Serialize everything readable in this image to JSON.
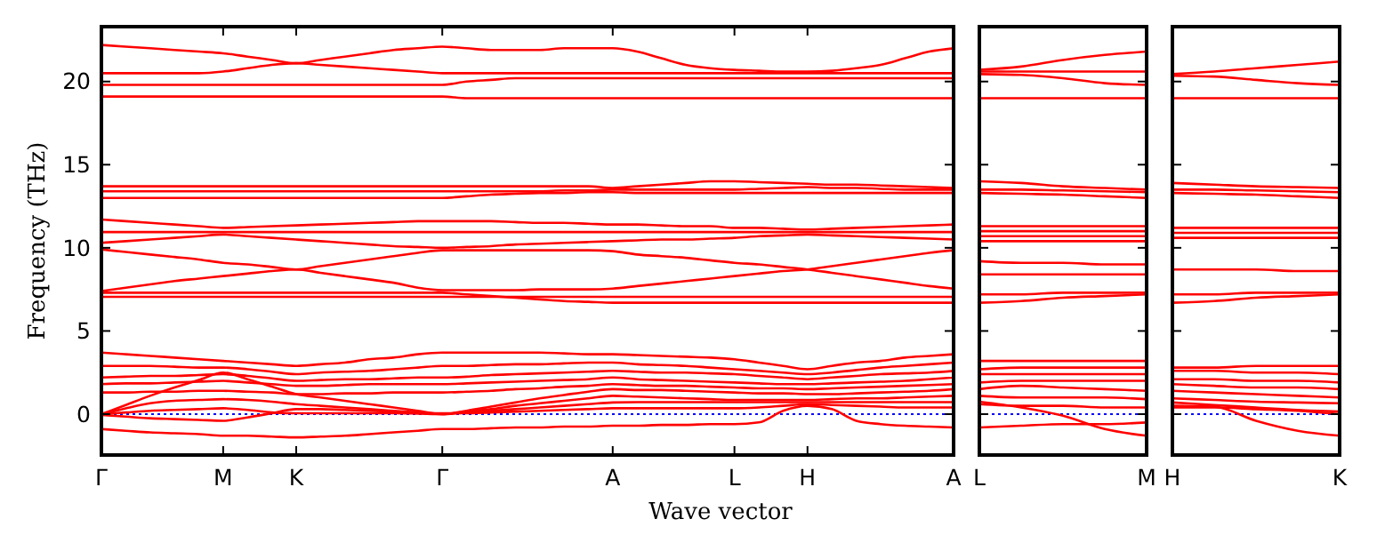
{
  "chart_data": [
    {
      "type": "line",
      "ylabel": "Frequency (THz)",
      "xlabel": "Wave vector",
      "categories": [
        "Γ",
        null,
        null,
        null,
        null,
        "M",
        null,
        null,
        "K",
        null,
        null,
        null,
        null,
        null,
        "Γ",
        null,
        null,
        null,
        null,
        null,
        null,
        "A",
        null,
        null,
        null,
        null,
        "L",
        null,
        null,
        "H",
        null,
        null,
        null,
        null,
        null,
        "A"
      ],
      "ylim": [
        -2.46,
        23.3
      ],
      "yticks": [
        0,
        5,
        10,
        15,
        20
      ],
      "ref_lines": [
        {
          "axis": "y",
          "value": 0,
          "color": "#0000ff",
          "line_style": "dotted"
        }
      ],
      "series": [
        {
          "color": "#ff0000",
          "values": [
            22.2,
            22.1,
            22.0,
            21.9,
            21.8,
            21.7,
            21.5,
            21.3,
            21.1,
            21.3,
            21.5,
            21.7,
            21.9,
            22.0,
            22.1,
            22.0,
            21.9,
            21.9,
            21.9,
            22.0,
            22.0,
            22.0,
            21.8,
            21.4,
            21.0,
            20.8,
            20.7,
            20.65,
            20.6,
            20.6,
            20.65,
            20.8,
            21.0,
            21.4,
            21.8,
            22.0
          ]
        },
        {
          "color": "#ff0000",
          "values": [
            20.5,
            20.5,
            20.5,
            20.5,
            20.5,
            20.6,
            20.8,
            21.0,
            21.1,
            21.0,
            20.9,
            20.8,
            20.7,
            20.6,
            20.5,
            20.5,
            20.5,
            20.5,
            20.5,
            20.5,
            20.5,
            20.5,
            20.5,
            20.5,
            20.5,
            20.5,
            20.5,
            20.5,
            20.5,
            20.5,
            20.5,
            20.5,
            20.5,
            20.5,
            20.5,
            20.5
          ]
        },
        {
          "color": "#ff0000",
          "values": [
            19.8,
            19.8,
            19.8,
            19.8,
            19.8,
            19.8,
            19.8,
            19.8,
            19.8,
            19.8,
            19.8,
            19.8,
            19.8,
            19.8,
            19.8,
            20.0,
            20.1,
            20.2,
            20.2,
            20.2,
            20.2,
            20.2,
            20.2,
            20.2,
            20.2,
            20.2,
            20.2,
            20.2,
            20.2,
            20.2,
            20.2,
            20.2,
            20.2,
            20.2,
            20.2,
            20.2
          ]
        },
        {
          "color": "#ff0000",
          "values": [
            19.1,
            19.1,
            19.1,
            19.1,
            19.1,
            19.1,
            19.1,
            19.1,
            19.1,
            19.1,
            19.1,
            19.1,
            19.1,
            19.1,
            19.1,
            19.0,
            19.0,
            19.0,
            19.0,
            19.0,
            19.0,
            19.0,
            19.0,
            19.0,
            19.0,
            19.0,
            19.0,
            19.0,
            19.0,
            19.0,
            19.0,
            19.0,
            19.0,
            19.0,
            19.0,
            19.0
          ]
        },
        {
          "color": "#ff0000",
          "values": [
            13.7,
            13.7,
            13.7,
            13.7,
            13.7,
            13.7,
            13.7,
            13.7,
            13.7,
            13.7,
            13.7,
            13.7,
            13.7,
            13.7,
            13.7,
            13.7,
            13.7,
            13.7,
            13.7,
            13.7,
            13.7,
            13.6,
            13.7,
            13.8,
            13.9,
            14.0,
            14.0,
            13.95,
            13.9,
            13.85,
            13.8,
            13.8,
            13.75,
            13.7,
            13.65,
            13.6
          ]
        },
        {
          "color": "#ff0000",
          "values": [
            13.4,
            13.4,
            13.4,
            13.4,
            13.4,
            13.4,
            13.4,
            13.4,
            13.4,
            13.4,
            13.4,
            13.4,
            13.4,
            13.4,
            13.4,
            13.4,
            13.4,
            13.4,
            13.4,
            13.45,
            13.45,
            13.5,
            13.5,
            13.5,
            13.5,
            13.5,
            13.5,
            13.55,
            13.6,
            13.65,
            13.6,
            13.6,
            13.55,
            13.5,
            13.5,
            13.5
          ]
        },
        {
          "color": "#ff0000",
          "values": [
            13.0,
            13.0,
            13.0,
            13.0,
            13.0,
            13.0,
            13.0,
            13.0,
            13.0,
            13.0,
            13.0,
            13.0,
            13.0,
            13.0,
            13.0,
            13.1,
            13.2,
            13.25,
            13.3,
            13.3,
            13.35,
            13.35,
            13.3,
            13.3,
            13.3,
            13.3,
            13.3,
            13.3,
            13.3,
            13.3,
            13.3,
            13.3,
            13.3,
            13.3,
            13.3,
            13.3
          ]
        },
        {
          "color": "#ff0000",
          "values": [
            11.7,
            11.6,
            11.5,
            11.4,
            11.3,
            11.2,
            11.25,
            11.3,
            11.35,
            11.4,
            11.45,
            11.5,
            11.55,
            11.6,
            11.6,
            11.6,
            11.6,
            11.55,
            11.5,
            11.5,
            11.45,
            11.4,
            11.4,
            11.35,
            11.3,
            11.3,
            11.2,
            11.2,
            11.15,
            11.1,
            11.15,
            11.2,
            11.25,
            11.3,
            11.35,
            11.4
          ]
        },
        {
          "color": "#ff0000",
          "values": [
            10.95,
            10.95,
            10.95,
            10.95,
            10.95,
            10.95,
            10.95,
            10.95,
            10.95,
            10.95,
            10.95,
            10.95,
            10.95,
            10.95,
            10.95,
            10.95,
            10.95,
            10.95,
            10.95,
            10.95,
            10.95,
            10.95,
            10.95,
            10.95,
            10.95,
            10.95,
            10.95,
            10.95,
            10.95,
            10.95,
            10.95,
            10.95,
            10.95,
            10.95,
            10.95,
            10.95
          ]
        },
        {
          "color": "#ff0000",
          "values": [
            10.3,
            10.4,
            10.5,
            10.6,
            10.7,
            10.8,
            10.7,
            10.6,
            10.5,
            10.4,
            10.3,
            10.2,
            10.1,
            10.05,
            10.0,
            10.05,
            10.1,
            10.2,
            10.25,
            10.3,
            10.35,
            10.4,
            10.45,
            10.5,
            10.5,
            10.55,
            10.6,
            10.7,
            10.75,
            10.8,
            10.75,
            10.7,
            10.65,
            10.6,
            10.55,
            10.5
          ]
        },
        {
          "color": "#ff0000",
          "values": [
            9.9,
            9.75,
            9.6,
            9.45,
            9.3,
            9.1,
            9.0,
            8.85,
            8.7,
            8.9,
            9.1,
            9.3,
            9.5,
            9.7,
            9.85,
            9.85,
            9.85,
            9.85,
            9.85,
            9.85,
            9.85,
            9.8,
            9.6,
            9.5,
            9.4,
            9.25,
            9.1,
            9.0,
            8.85,
            8.7,
            8.5,
            8.3,
            8.1,
            7.9,
            7.7,
            7.55
          ]
        },
        {
          "color": "#ff0000",
          "values": [
            7.4,
            7.6,
            7.8,
            8.0,
            8.15,
            8.3,
            8.45,
            8.6,
            8.7,
            8.5,
            8.3,
            8.1,
            7.9,
            7.6,
            7.45,
            7.45,
            7.45,
            7.45,
            7.5,
            7.5,
            7.5,
            7.55,
            7.7,
            7.85,
            8.0,
            8.15,
            8.3,
            8.45,
            8.6,
            8.7,
            8.9,
            9.1,
            9.3,
            9.5,
            9.7,
            9.85
          ]
        },
        {
          "color": "#ff0000",
          "values": [
            7.3,
            7.3,
            7.3,
            7.3,
            7.3,
            7.3,
            7.3,
            7.3,
            7.3,
            7.3,
            7.3,
            7.3,
            7.3,
            7.3,
            7.3,
            7.2,
            7.1,
            7.0,
            6.9,
            6.8,
            6.75,
            6.7,
            6.7,
            6.7,
            6.7,
            6.7,
            6.7,
            6.7,
            6.7,
            6.7,
            6.7,
            6.7,
            6.7,
            6.7,
            6.7,
            6.7
          ]
        },
        {
          "color": "#ff0000",
          "values": [
            7.05,
            7.05,
            7.05,
            7.05,
            7.05,
            7.05,
            7.05,
            7.05,
            7.05,
            7.05,
            7.05,
            7.05,
            7.05,
            7.05,
            7.05,
            7.05,
            7.05,
            7.05,
            7.05,
            7.05,
            7.05,
            7.05,
            7.05,
            7.05,
            7.05,
            7.05,
            7.05,
            7.05,
            7.05,
            7.05,
            7.05,
            7.05,
            7.05,
            7.05,
            7.05,
            7.05
          ]
        },
        {
          "color": "#ff0000",
          "values": [
            3.7,
            3.6,
            3.5,
            3.4,
            3.3,
            3.2,
            3.1,
            3.0,
            2.9,
            3.0,
            3.1,
            3.3,
            3.4,
            3.6,
            3.7,
            3.7,
            3.7,
            3.7,
            3.7,
            3.65,
            3.6,
            3.6,
            3.55,
            3.5,
            3.45,
            3.4,
            3.3,
            3.1,
            2.9,
            2.7,
            2.9,
            3.1,
            3.2,
            3.4,
            3.5,
            3.6
          ]
        },
        {
          "color": "#ff0000",
          "values": [
            2.9,
            2.9,
            2.9,
            2.85,
            2.8,
            2.8,
            2.7,
            2.55,
            2.4,
            2.5,
            2.55,
            2.6,
            2.7,
            2.8,
            2.9,
            2.9,
            2.95,
            3.0,
            3.0,
            3.05,
            3.1,
            3.1,
            3.0,
            2.95,
            2.9,
            2.8,
            2.7,
            2.6,
            2.5,
            2.4,
            2.5,
            2.65,
            2.8,
            2.9,
            3.0,
            3.1
          ]
        },
        {
          "color": "#ff0000",
          "values": [
            2.2,
            2.25,
            2.3,
            2.3,
            2.35,
            2.4,
            2.3,
            2.15,
            2.0,
            2.05,
            2.1,
            2.1,
            2.15,
            2.2,
            2.2,
            2.25,
            2.35,
            2.4,
            2.45,
            2.5,
            2.55,
            2.6,
            2.55,
            2.5,
            2.5,
            2.45,
            2.4,
            2.3,
            2.2,
            2.1,
            2.2,
            2.3,
            2.4,
            2.45,
            2.5,
            2.6
          ]
        },
        {
          "color": "#ff0000",
          "values": [
            1.8,
            1.85,
            1.85,
            1.9,
            1.95,
            2.0,
            1.9,
            1.8,
            1.7,
            1.7,
            1.75,
            1.8,
            1.8,
            1.8,
            1.8,
            1.85,
            1.9,
            1.95,
            2.0,
            2.05,
            2.1,
            2.2,
            2.1,
            2.05,
            2.0,
            1.95,
            1.9,
            1.85,
            1.8,
            1.8,
            1.85,
            1.9,
            1.95,
            2.0,
            2.1,
            2.2
          ]
        },
        {
          "color": "#ff0000",
          "values": [
            1.3,
            1.3,
            1.35,
            1.35,
            1.4,
            1.4,
            1.35,
            1.3,
            1.2,
            1.2,
            1.25,
            1.25,
            1.3,
            1.3,
            1.3,
            1.35,
            1.4,
            1.5,
            1.55,
            1.65,
            1.7,
            1.8,
            1.75,
            1.7,
            1.7,
            1.65,
            1.6,
            1.55,
            1.55,
            1.5,
            1.55,
            1.6,
            1.65,
            1.7,
            1.75,
            1.8
          ]
        },
        {
          "color": "#ff0000",
          "values": [
            0,
            0.35,
            0.65,
            0.8,
            0.85,
            0.9,
            0.85,
            0.75,
            0.6,
            0.5,
            0.4,
            0.3,
            0.2,
            0.1,
            0,
            0.2,
            0.45,
            0.7,
            0.95,
            1.15,
            1.35,
            1.5,
            1.45,
            1.45,
            1.4,
            1.35,
            1.3,
            1.25,
            1.25,
            1.2,
            1.2,
            1.25,
            1.3,
            1.35,
            1.4,
            1.5
          ]
        },
        {
          "color": "#ff0000",
          "values": [
            0,
            0.55,
            1.1,
            1.6,
            2.05,
            2.5,
            2.1,
            1.65,
            1.2,
            1.0,
            0.8,
            0.6,
            0.4,
            0.2,
            0,
            0.15,
            0.3,
            0.5,
            0.65,
            0.8,
            0.95,
            1.1,
            1.05,
            1.0,
            0.95,
            0.9,
            0.85,
            0.85,
            0.85,
            0.85,
            0.9,
            0.95,
            0.95,
            1.0,
            1.05,
            1.1
          ]
        },
        {
          "color": "#ff0000",
          "values": [
            0,
            0.1,
            0.2,
            0.25,
            0.3,
            0.35,
            0.25,
            0.1,
            0.05,
            0.05,
            0.05,
            0.05,
            0.05,
            0.03,
            0,
            0.1,
            0.2,
            0.3,
            0.4,
            0.5,
            0.6,
            0.7,
            0.72,
            0.72,
            0.72,
            0.72,
            0.72,
            0.72,
            0.72,
            0.72,
            0.72,
            0.72,
            0.72,
            0.72,
            0.72,
            0.72
          ]
        },
        {
          "color": "#ff0000",
          "values": [
            -0.05,
            -0.15,
            -0.25,
            -0.3,
            -0.35,
            -0.4,
            -0.2,
            0.05,
            0.3,
            0.3,
            0.25,
            0.2,
            0.15,
            0.1,
            0.05,
            0.05,
            0.1,
            0.15,
            0.2,
            0.25,
            0.3,
            0.35,
            0.35,
            0.35,
            0.35,
            0.35,
            0.35,
            0.4,
            0.5,
            0.6,
            0.55,
            0.5,
            0.45,
            0.4,
            0.4,
            0.4
          ]
        },
        {
          "color": "#ff0000",
          "values": [
            -0.9,
            -1.0,
            -1.1,
            -1.15,
            -1.2,
            -1.3,
            -1.3,
            -1.35,
            -1.4,
            -1.35,
            -1.3,
            -1.2,
            -1.1,
            -1.0,
            -0.9,
            -0.9,
            -0.85,
            -0.8,
            -0.8,
            -0.75,
            -0.75,
            -0.7,
            -0.7,
            -0.65,
            -0.65,
            -0.6,
            -0.6,
            -0.5,
            0.2,
            0.5,
            0.3,
            -0.4,
            -0.6,
            -0.7,
            -0.75,
            -0.8
          ]
        }
      ]
    },
    {
      "type": "line",
      "tick_labels": "x",
      "categories": [
        "L",
        null,
        null,
        null,
        "M"
      ],
      "ylim": [
        -2.46,
        23.3
      ],
      "yticks": [
        0,
        5,
        10,
        15,
        20
      ],
      "ref_lines": [
        {
          "axis": "y",
          "value": 0,
          "color": "#0000ff",
          "line_style": "dotted"
        }
      ],
      "series": [
        {
          "color": "#ff0000",
          "values": [
            20.7,
            20.9,
            21.3,
            21.6,
            21.8
          ]
        },
        {
          "color": "#ff0000",
          "values": [
            20.6,
            20.6,
            20.6,
            20.6,
            20.6
          ]
        },
        {
          "color": "#ff0000",
          "values": [
            20.45,
            20.4,
            20.2,
            19.9,
            19.8
          ]
        },
        {
          "color": "#ff0000",
          "values": [
            19.0,
            19.0,
            19.0,
            19.0,
            19.0
          ]
        },
        {
          "color": "#ff0000",
          "values": [
            14.0,
            13.9,
            13.7,
            13.6,
            13.5
          ]
        },
        {
          "color": "#ff0000",
          "values": [
            13.5,
            13.5,
            13.45,
            13.4,
            13.35
          ]
        },
        {
          "color": "#ff0000",
          "values": [
            13.3,
            13.25,
            13.2,
            13.1,
            13.0
          ]
        },
        {
          "color": "#ff0000",
          "values": [
            11.3,
            11.3,
            11.3,
            11.3,
            11.3
          ]
        },
        {
          "color": "#ff0000",
          "values": [
            11.0,
            11.0,
            11.0,
            11.0,
            11.0
          ]
        },
        {
          "color": "#ff0000",
          "values": [
            10.7,
            10.7,
            10.7,
            10.7,
            10.7
          ]
        },
        {
          "color": "#ff0000",
          "values": [
            10.4,
            10.4,
            10.4,
            10.4,
            10.4
          ]
        },
        {
          "color": "#ff0000",
          "values": [
            9.2,
            9.1,
            9.1,
            9.0,
            9.0
          ]
        },
        {
          "color": "#ff0000",
          "values": [
            8.4,
            8.4,
            8.4,
            8.4,
            8.4
          ]
        },
        {
          "color": "#ff0000",
          "values": [
            7.2,
            7.2,
            7.3,
            7.3,
            7.3
          ]
        },
        {
          "color": "#ff0000",
          "values": [
            6.7,
            6.8,
            7.0,
            7.1,
            7.2
          ]
        },
        {
          "color": "#ff0000",
          "values": [
            3.2,
            3.2,
            3.2,
            3.2,
            3.2
          ]
        },
        {
          "color": "#ff0000",
          "values": [
            2.7,
            2.8,
            2.8,
            2.8,
            2.8
          ]
        },
        {
          "color": "#ff0000",
          "values": [
            2.4,
            2.4,
            2.4,
            2.4,
            2.4
          ]
        },
        {
          "color": "#ff0000",
          "values": [
            1.9,
            2.0,
            2.0,
            2.0,
            2.0
          ]
        },
        {
          "color": "#ff0000",
          "values": [
            1.5,
            1.7,
            1.6,
            1.5,
            1.4
          ]
        },
        {
          "color": "#ff0000",
          "values": [
            1.1,
            1.0,
            1.0,
            1.0,
            0.9
          ]
        },
        {
          "color": "#ff0000",
          "values": [
            0.6,
            0.5,
            0.5,
            0.4,
            0.4
          ]
        },
        {
          "color": "#ff0000",
          "values": [
            0.75,
            0.4,
            -0.1,
            -0.9,
            -1.3
          ]
        },
        {
          "color": "#ff0000",
          "values": [
            -0.8,
            -0.7,
            -0.6,
            -0.6,
            -0.5
          ]
        }
      ]
    },
    {
      "type": "line",
      "tick_labels": "x",
      "categories": [
        "H",
        null,
        null,
        null,
        "K"
      ],
      "ylim": [
        -2.46,
        23.3
      ],
      "yticks": [
        0,
        5,
        10,
        15,
        20
      ],
      "ref_lines": [
        {
          "axis": "y",
          "value": 0,
          "color": "#0000ff",
          "line_style": "dotted"
        }
      ],
      "series": [
        {
          "color": "#ff0000",
          "values": [
            20.45,
            20.6,
            20.8,
            21.0,
            21.2
          ]
        },
        {
          "color": "#ff0000",
          "values": [
            20.35,
            20.3,
            20.1,
            19.9,
            19.8
          ]
        },
        {
          "color": "#ff0000",
          "values": [
            19.0,
            19.0,
            19.0,
            19.0,
            19.0
          ]
        },
        {
          "color": "#ff0000",
          "values": [
            13.9,
            13.8,
            13.7,
            13.65,
            13.6
          ]
        },
        {
          "color": "#ff0000",
          "values": [
            13.5,
            13.5,
            13.45,
            13.4,
            13.35
          ]
        },
        {
          "color": "#ff0000",
          "values": [
            13.3,
            13.25,
            13.2,
            13.1,
            13.0
          ]
        },
        {
          "color": "#ff0000",
          "values": [
            11.2,
            11.2,
            11.2,
            11.2,
            11.2
          ]
        },
        {
          "color": "#ff0000",
          "values": [
            10.9,
            10.9,
            10.9,
            10.9,
            10.9
          ]
        },
        {
          "color": "#ff0000",
          "values": [
            10.6,
            10.6,
            10.6,
            10.6,
            10.6
          ]
        },
        {
          "color": "#ff0000",
          "values": [
            8.7,
            8.7,
            8.7,
            8.6,
            8.6
          ]
        },
        {
          "color": "#ff0000",
          "values": [
            7.2,
            7.2,
            7.3,
            7.3,
            7.3
          ]
        },
        {
          "color": "#ff0000",
          "values": [
            6.7,
            6.8,
            7.0,
            7.1,
            7.2
          ]
        },
        {
          "color": "#ff0000",
          "values": [
            2.8,
            2.8,
            2.9,
            2.9,
            2.9
          ]
        },
        {
          "color": "#ff0000",
          "values": [
            2.6,
            2.6,
            2.5,
            2.5,
            2.4
          ]
        },
        {
          "color": "#ff0000",
          "values": [
            2.1,
            2.1,
            2.0,
            2.0,
            1.9
          ]
        },
        {
          "color": "#ff0000",
          "values": [
            1.8,
            1.7,
            1.6,
            1.6,
            1.5
          ]
        },
        {
          "color": "#ff0000",
          "values": [
            1.4,
            1.3,
            1.2,
            1.1,
            1.0
          ]
        },
        {
          "color": "#ff0000",
          "values": [
            0.95,
            0.85,
            0.75,
            0.7,
            0.65
          ]
        },
        {
          "color": "#ff0000",
          "values": [
            0.7,
            0.55,
            0.4,
            0.25,
            0.15
          ]
        },
        {
          "color": "#ff0000",
          "values": [
            0.4,
            0.4,
            0.3,
            0.2,
            0
          ]
        },
        {
          "color": "#ff0000",
          "values": [
            0.5,
            0.45,
            -0.4,
            -1.0,
            -1.3
          ]
        }
      ]
    }
  ]
}
